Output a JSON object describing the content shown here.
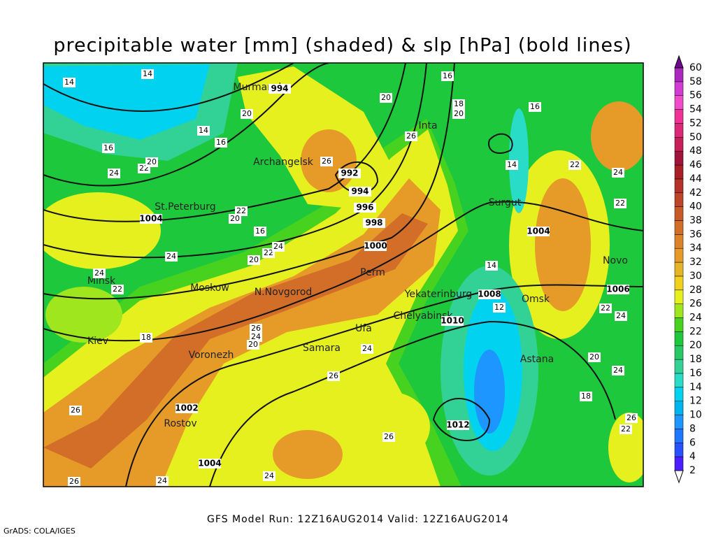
{
  "title": "precipitable water [mm] (shaded) & slp [hPa] (bold lines)",
  "footer": "GFS Model Run: 12Z16AUG2014  Valid: 12Z16AUG2014",
  "credit": "GrADS: COLA/IGES",
  "colorbar": {
    "ticks": [
      2,
      4,
      6,
      8,
      10,
      12,
      14,
      16,
      18,
      20,
      22,
      24,
      26,
      28,
      30,
      32,
      34,
      36,
      38,
      40,
      42,
      44,
      46,
      48,
      50,
      52,
      54,
      56,
      58,
      60
    ],
    "colors": [
      "#4b1eff",
      "#2850ff",
      "#1e78ff",
      "#1e96ff",
      "#00b4f0",
      "#00d2f0",
      "#28dcc8",
      "#32d296",
      "#28c864",
      "#1ec83c",
      "#46d21e",
      "#a0e61e",
      "#e6f01e",
      "#f0d21e",
      "#e6b428",
      "#e69b28",
      "#dc8228",
      "#d26e28",
      "#c85a28",
      "#be4628",
      "#b43228",
      "#aa1e28",
      "#a0143c",
      "#c81e5a",
      "#dc2878",
      "#f03296",
      "#f04bc8",
      "#d23cd2",
      "#aa28be",
      "#6e0a8c"
    ]
  },
  "cities": [
    "Murmansk",
    "Inta",
    "Archangelsk",
    "St.Peterburg",
    "Surgut",
    "Perm",
    "Minsk",
    "Moskow",
    "N.Novgorod",
    "Yekaterinburg",
    "Omsk",
    "Chelyabinsk",
    "Ufa",
    "Samara",
    "Kiev",
    "Voronezh",
    "Astana",
    "Rostov",
    "Novo"
  ],
  "slp_labels": [
    "994",
    "992",
    "994",
    "996",
    "998",
    "1000",
    "1004",
    "1004",
    "1008",
    "1006",
    "1010",
    "1002",
    "1012",
    "1004"
  ],
  "pw_labels": [
    "14",
    "14",
    "20",
    "14",
    "16",
    "16",
    "24",
    "22",
    "20",
    "26",
    "26",
    "20",
    "16",
    "18",
    "20",
    "16",
    "14",
    "22",
    "24",
    "22",
    "22",
    "20",
    "16",
    "22",
    "24",
    "24",
    "20",
    "24",
    "22",
    "14",
    "12",
    "22",
    "24",
    "18",
    "26",
    "24",
    "20",
    "24",
    "26",
    "20",
    "24",
    "18",
    "26",
    "22",
    "26",
    "26",
    "24",
    "24",
    "26"
  ]
}
